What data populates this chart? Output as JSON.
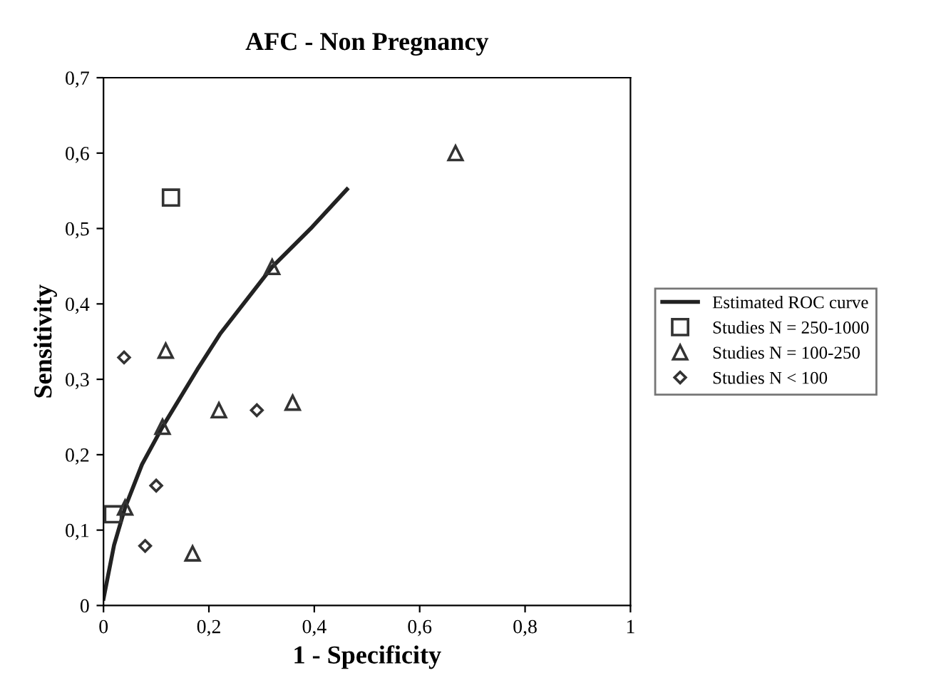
{
  "chart_data": {
    "type": "scatter",
    "title": "AFC - Non Pregnancy",
    "xlabel": "1 - Specificity",
    "ylabel": "Sensitivity",
    "xlim": [
      0,
      1
    ],
    "ylim": [
      0,
      0.7
    ],
    "xticks": [
      {
        "value": 0,
        "label": "0"
      },
      {
        "value": 0.2,
        "label": "0,2"
      },
      {
        "value": 0.4,
        "label": "0,4"
      },
      {
        "value": 0.6,
        "label": "0,6"
      },
      {
        "value": 0.8,
        "label": "0,8"
      },
      {
        "value": 1,
        "label": "1"
      }
    ],
    "yticks": [
      {
        "value": 0,
        "label": "0"
      },
      {
        "value": 0.1,
        "label": "0,1"
      },
      {
        "value": 0.2,
        "label": "0,2"
      },
      {
        "value": 0.3,
        "label": "0,3"
      },
      {
        "value": 0.4,
        "label": "0,4"
      },
      {
        "value": 0.5,
        "label": "0,5"
      },
      {
        "value": 0.6,
        "label": "0,6"
      },
      {
        "value": 0.7,
        "label": "0,7"
      }
    ],
    "grid": false,
    "legend": "right",
    "series": [
      {
        "name": "Estimated ROC curve",
        "type": "line",
        "color": "#222222",
        "marker": "none",
        "line_style": "solid",
        "x": [
          0,
          0.02,
          0.041,
          0.073,
          0.112,
          0.178,
          0.221,
          0.32,
          0.396,
          0.462
        ],
        "values": [
          0.009,
          0.08,
          0.13,
          0.187,
          0.237,
          0.313,
          0.36,
          0.449,
          0.502,
          0.552
        ]
      },
      {
        "name": "Studies N = 250-1000",
        "color": "#333333",
        "marker": "square",
        "x": [
          0.128,
          0.018
        ],
        "values": [
          0.541,
          0.121
        ]
      },
      {
        "name": "Studies N = 100-250",
        "color": "#333333",
        "marker": "triangle",
        "x": [
          0.668,
          0.32,
          0.118,
          0.219,
          0.359,
          0.112,
          0.041,
          0.169
        ],
        "values": [
          0.6,
          0.449,
          0.338,
          0.259,
          0.269,
          0.237,
          0.13,
          0.069
        ]
      },
      {
        "name": "Studies N < 100",
        "color": "#333333",
        "marker": "diamond",
        "x": [
          0.039,
          0.291,
          0.1,
          0.079
        ],
        "values": [
          0.329,
          0.259,
          0.159,
          0.079
        ]
      }
    ]
  }
}
